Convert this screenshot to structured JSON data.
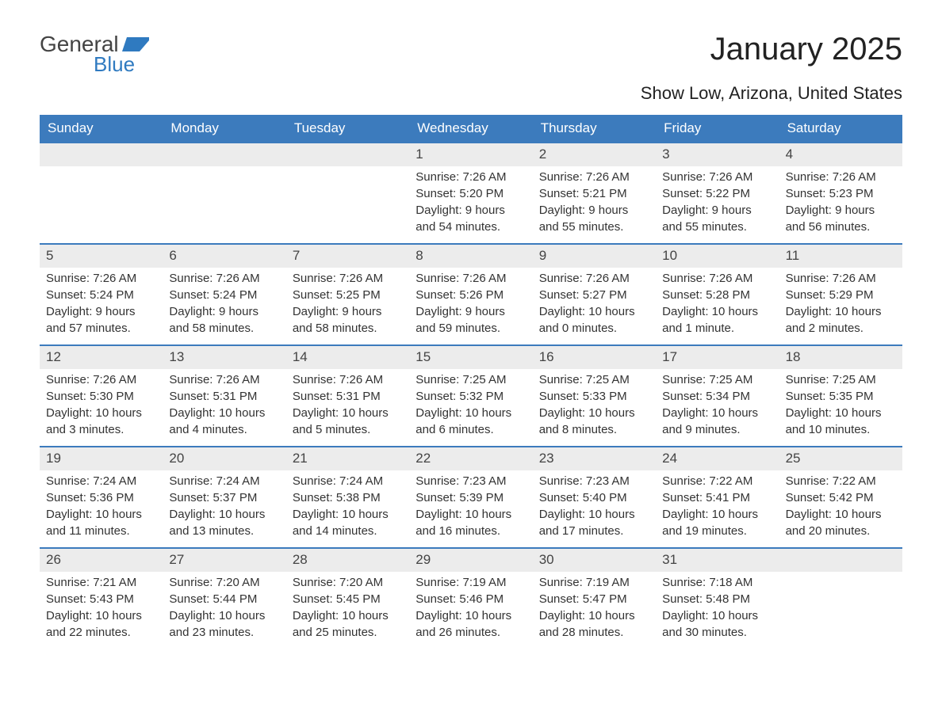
{
  "logo": {
    "text_general": "General",
    "text_blue": "Blue",
    "flag_color": "#2f7ac0"
  },
  "header": {
    "month_title": "January 2025",
    "location": "Show Low, Arizona, United States"
  },
  "colors": {
    "header_bg": "#3c7bbd",
    "header_text": "#ffffff",
    "week_border": "#3c7bbd",
    "day_strip_bg": "#ececec",
    "body_text": "#333333",
    "page_bg": "#ffffff"
  },
  "day_headers": [
    "Sunday",
    "Monday",
    "Tuesday",
    "Wednesday",
    "Thursday",
    "Friday",
    "Saturday"
  ],
  "weeks": [
    [
      null,
      null,
      null,
      {
        "n": "1",
        "sunrise": "7:26 AM",
        "sunset": "5:20 PM",
        "daylight": "9 hours and 54 minutes."
      },
      {
        "n": "2",
        "sunrise": "7:26 AM",
        "sunset": "5:21 PM",
        "daylight": "9 hours and 55 minutes."
      },
      {
        "n": "3",
        "sunrise": "7:26 AM",
        "sunset": "5:22 PM",
        "daylight": "9 hours and 55 minutes."
      },
      {
        "n": "4",
        "sunrise": "7:26 AM",
        "sunset": "5:23 PM",
        "daylight": "9 hours and 56 minutes."
      }
    ],
    [
      {
        "n": "5",
        "sunrise": "7:26 AM",
        "sunset": "5:24 PM",
        "daylight": "9 hours and 57 minutes."
      },
      {
        "n": "6",
        "sunrise": "7:26 AM",
        "sunset": "5:24 PM",
        "daylight": "9 hours and 58 minutes."
      },
      {
        "n": "7",
        "sunrise": "7:26 AM",
        "sunset": "5:25 PM",
        "daylight": "9 hours and 58 minutes."
      },
      {
        "n": "8",
        "sunrise": "7:26 AM",
        "sunset": "5:26 PM",
        "daylight": "9 hours and 59 minutes."
      },
      {
        "n": "9",
        "sunrise": "7:26 AM",
        "sunset": "5:27 PM",
        "daylight": "10 hours and 0 minutes."
      },
      {
        "n": "10",
        "sunrise": "7:26 AM",
        "sunset": "5:28 PM",
        "daylight": "10 hours and 1 minute."
      },
      {
        "n": "11",
        "sunrise": "7:26 AM",
        "sunset": "5:29 PM",
        "daylight": "10 hours and 2 minutes."
      }
    ],
    [
      {
        "n": "12",
        "sunrise": "7:26 AM",
        "sunset": "5:30 PM",
        "daylight": "10 hours and 3 minutes."
      },
      {
        "n": "13",
        "sunrise": "7:26 AM",
        "sunset": "5:31 PM",
        "daylight": "10 hours and 4 minutes."
      },
      {
        "n": "14",
        "sunrise": "7:26 AM",
        "sunset": "5:31 PM",
        "daylight": "10 hours and 5 minutes."
      },
      {
        "n": "15",
        "sunrise": "7:25 AM",
        "sunset": "5:32 PM",
        "daylight": "10 hours and 6 minutes."
      },
      {
        "n": "16",
        "sunrise": "7:25 AM",
        "sunset": "5:33 PM",
        "daylight": "10 hours and 8 minutes."
      },
      {
        "n": "17",
        "sunrise": "7:25 AM",
        "sunset": "5:34 PM",
        "daylight": "10 hours and 9 minutes."
      },
      {
        "n": "18",
        "sunrise": "7:25 AM",
        "sunset": "5:35 PM",
        "daylight": "10 hours and 10 minutes."
      }
    ],
    [
      {
        "n": "19",
        "sunrise": "7:24 AM",
        "sunset": "5:36 PM",
        "daylight": "10 hours and 11 minutes."
      },
      {
        "n": "20",
        "sunrise": "7:24 AM",
        "sunset": "5:37 PM",
        "daylight": "10 hours and 13 minutes."
      },
      {
        "n": "21",
        "sunrise": "7:24 AM",
        "sunset": "5:38 PM",
        "daylight": "10 hours and 14 minutes."
      },
      {
        "n": "22",
        "sunrise": "7:23 AM",
        "sunset": "5:39 PM",
        "daylight": "10 hours and 16 minutes."
      },
      {
        "n": "23",
        "sunrise": "7:23 AM",
        "sunset": "5:40 PM",
        "daylight": "10 hours and 17 minutes."
      },
      {
        "n": "24",
        "sunrise": "7:22 AM",
        "sunset": "5:41 PM",
        "daylight": "10 hours and 19 minutes."
      },
      {
        "n": "25",
        "sunrise": "7:22 AM",
        "sunset": "5:42 PM",
        "daylight": "10 hours and 20 minutes."
      }
    ],
    [
      {
        "n": "26",
        "sunrise": "7:21 AM",
        "sunset": "5:43 PM",
        "daylight": "10 hours and 22 minutes."
      },
      {
        "n": "27",
        "sunrise": "7:20 AM",
        "sunset": "5:44 PM",
        "daylight": "10 hours and 23 minutes."
      },
      {
        "n": "28",
        "sunrise": "7:20 AM",
        "sunset": "5:45 PM",
        "daylight": "10 hours and 25 minutes."
      },
      {
        "n": "29",
        "sunrise": "7:19 AM",
        "sunset": "5:46 PM",
        "daylight": "10 hours and 26 minutes."
      },
      {
        "n": "30",
        "sunrise": "7:19 AM",
        "sunset": "5:47 PM",
        "daylight": "10 hours and 28 minutes."
      },
      {
        "n": "31",
        "sunrise": "7:18 AM",
        "sunset": "5:48 PM",
        "daylight": "10 hours and 30 minutes."
      },
      null
    ]
  ],
  "labels": {
    "sunrise_prefix": "Sunrise: ",
    "sunset_prefix": "Sunset: ",
    "daylight_prefix": "Daylight: "
  }
}
